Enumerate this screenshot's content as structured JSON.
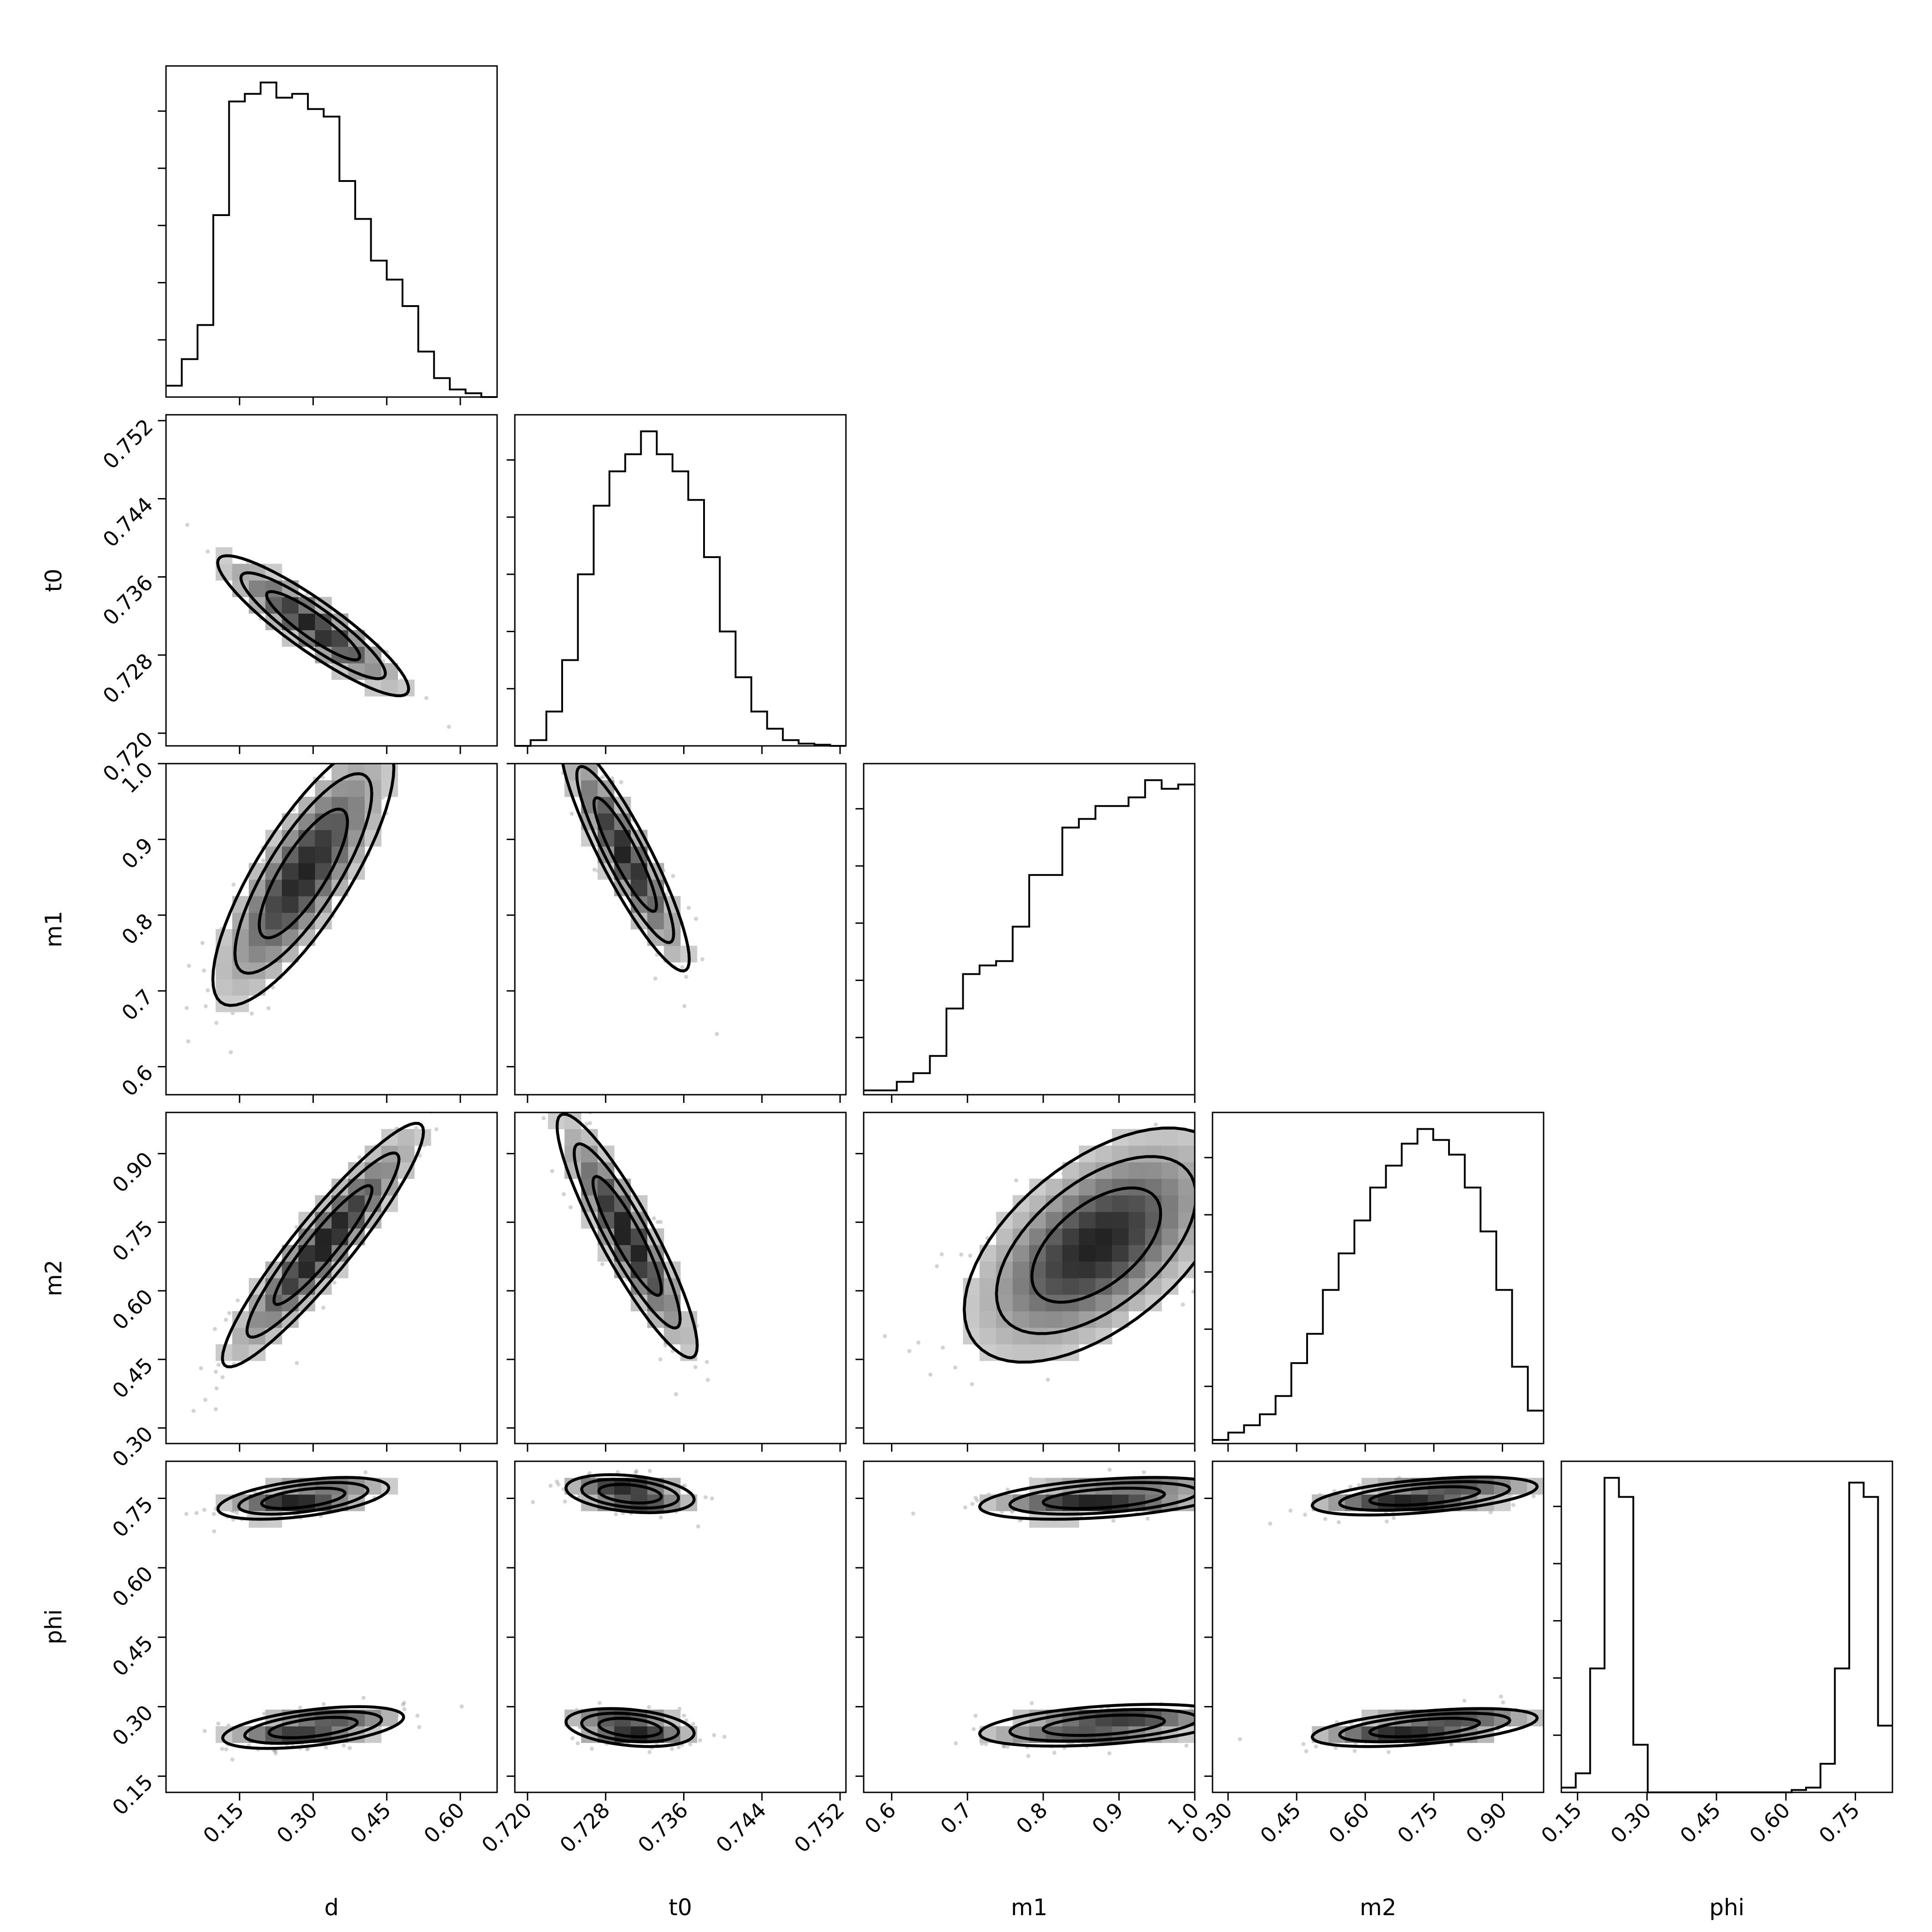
{
  "chart_data": {
    "type": "corner",
    "parameters": [
      "d",
      "t0",
      "m1",
      "m2",
      "phi"
    ],
    "colors": {
      "ink": "#000000",
      "density": "#000000",
      "points": "#808080",
      "background": "#ffffff"
    },
    "axes": {
      "d": {
        "label": "d",
        "range": [
          0.0,
          0.675
        ],
        "ticks": [
          "0.15",
          "0.30",
          "0.45",
          "0.60"
        ]
      },
      "t0": {
        "label": "t0",
        "range": [
          0.7187,
          0.7526
        ],
        "ticks": [
          "0.720",
          "0.728",
          "0.736",
          "0.744",
          "0.752"
        ]
      },
      "m1": {
        "label": "m1",
        "range": [
          0.563,
          1.0
        ],
        "ticks": [
          "0.6",
          "0.7",
          "0.8",
          "0.9",
          "1.0"
        ]
      },
      "m2": {
        "label": "m2",
        "range": [
          0.266,
          0.99
        ],
        "ticks": [
          "0.30",
          "0.45",
          "0.60",
          "0.75",
          "0.90"
        ]
      },
      "phi": {
        "label": "phi",
        "range": [
          0.115,
          0.83
        ],
        "ticks": [
          "0.15",
          "0.30",
          "0.45",
          "0.60",
          "0.75"
        ]
      }
    },
    "histograms": {
      "d": {
        "bins": [
          0.0,
          0.675
        ],
        "counts": [
          3,
          10,
          19,
          48,
          78,
          80,
          83,
          79,
          80,
          76,
          74,
          57,
          47,
          36,
          31,
          24,
          12,
          5,
          2,
          1,
          0
        ]
      },
      "t0": {
        "bins": [
          0.7187,
          0.7526
        ],
        "counts": [
          0,
          1,
          6,
          15,
          30,
          42,
          48,
          51,
          55,
          51,
          48,
          43,
          33,
          20,
          12,
          6,
          3,
          1,
          0.4,
          0.2,
          0
        ]
      },
      "m1": {
        "bins": [
          0.563,
          1.0
        ],
        "counts": [
          1,
          1,
          3,
          5,
          9,
          20,
          28,
          30,
          31,
          39,
          51,
          51,
          62,
          64,
          67,
          67,
          69,
          73,
          71,
          72
        ]
      },
      "m2": {
        "bins": [
          0.266,
          0.99
        ],
        "counts": [
          1,
          3,
          5,
          8,
          13,
          22,
          30,
          42,
          52,
          61,
          70,
          76,
          82,
          86,
          83,
          79,
          70,
          58,
          42,
          21,
          9
        ]
      },
      "phi": {
        "bins": [
          0.115,
          0.83
        ],
        "counts": [
          1,
          4,
          26,
          66,
          62,
          10,
          0,
          0,
          0,
          0,
          0,
          0,
          0,
          0,
          0,
          0,
          0.5,
          1,
          6,
          26,
          65,
          62,
          14
        ]
      }
    },
    "pairs": [
      {
        "x": "d",
        "y": "t0",
        "blobs": [
          {
            "mean": [
              0.3,
              0.731
            ],
            "sd": [
              0.095,
              0.0035
            ],
            "corr": -0.9,
            "w": 1
          }
        ]
      },
      {
        "x": "d",
        "y": "m1",
        "blobs": [
          {
            "mean": [
              0.28,
              0.855
            ],
            "sd": [
              0.09,
              0.085
            ],
            "corr": 0.8,
            "w": 1
          }
        ]
      },
      {
        "x": "t0",
        "y": "m1",
        "blobs": [
          {
            "mean": [
              0.73,
              0.88
            ],
            "sd": [
              0.0032,
              0.075
            ],
            "corr": -0.9,
            "w": 1
          }
        ]
      },
      {
        "x": "d",
        "y": "m2",
        "blobs": [
          {
            "mean": [
              0.32,
              0.7
            ],
            "sd": [
              0.1,
              0.13
            ],
            "corr": 0.93,
            "w": 1
          }
        ]
      },
      {
        "x": "t0",
        "y": "m2",
        "blobs": [
          {
            "mean": [
              0.7302,
              0.72
            ],
            "sd": [
              0.0035,
              0.13
            ],
            "corr": -0.9,
            "w": 1
          }
        ]
      },
      {
        "x": "m1",
        "y": "m2",
        "blobs": [
          {
            "mean": [
              0.87,
              0.7
            ],
            "sd": [
              0.085,
              0.125
            ],
            "corr": 0.55,
            "w": 1
          }
        ]
      },
      {
        "x": "d",
        "y": "phi",
        "blobs": [
          {
            "mean": [
              0.28,
              0.75
            ],
            "sd": [
              0.085,
              0.022
            ],
            "corr": 0.5,
            "w": 1
          },
          {
            "mean": [
              0.3,
              0.255
            ],
            "sd": [
              0.09,
              0.022
            ],
            "corr": 0.5,
            "w": 1
          }
        ]
      },
      {
        "x": "t0",
        "y": "phi",
        "blobs": [
          {
            "mean": [
              0.7305,
              0.76
            ],
            "sd": [
              0.0032,
              0.02
            ],
            "corr": -0.3,
            "w": 1
          },
          {
            "mean": [
              0.7305,
              0.255
            ],
            "sd": [
              0.0032,
              0.02
            ],
            "corr": -0.3,
            "w": 1
          }
        ]
      },
      {
        "x": "m1",
        "y": "phi",
        "blobs": [
          {
            "mean": [
              0.88,
              0.75
            ],
            "sd": [
              0.08,
              0.022
            ],
            "corr": 0.4,
            "w": 1
          },
          {
            "mean": [
              0.88,
              0.26
            ],
            "sd": [
              0.08,
              0.022
            ],
            "corr": 0.4,
            "w": 1
          }
        ]
      },
      {
        "x": "m2",
        "y": "phi",
        "blobs": [
          {
            "mean": [
              0.73,
              0.755
            ],
            "sd": [
              0.12,
              0.02
            ],
            "corr": 0.5,
            "w": 1
          },
          {
            "mean": [
              0.73,
              0.255
            ],
            "sd": [
              0.12,
              0.02
            ],
            "corr": 0.5,
            "w": 1
          }
        ]
      }
    ]
  }
}
